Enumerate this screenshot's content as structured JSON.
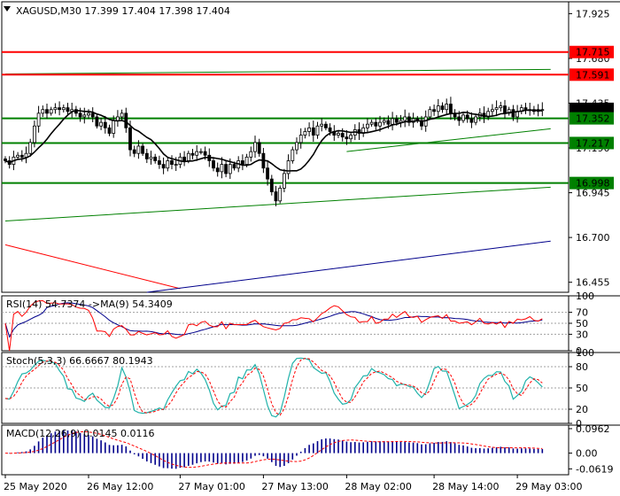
{
  "chart_data": [
    {
      "type": "candlestick",
      "panel": "price",
      "header": "XAGUSD,M30  17.399 17.404 17.398 17.404",
      "y_ticks": [
        "17.925",
        "17.680",
        "17.435",
        "17.190",
        "16.945",
        "16.700",
        "16.455"
      ],
      "ylim": [
        16.4,
        17.99
      ],
      "grid": false,
      "series": [
        {
          "name": "",
          "close": [
            17.12,
            17.1,
            17.14,
            17.15,
            17.14,
            17.16,
            17.22,
            17.31,
            17.38,
            17.4,
            17.38,
            17.4,
            17.41,
            17.4,
            17.41,
            17.39,
            17.4,
            17.38,
            17.36,
            17.37,
            17.38,
            17.36,
            17.31,
            17.33,
            17.3,
            17.27,
            17.34,
            17.36,
            17.38,
            17.3,
            17.18,
            17.16,
            17.2,
            17.16,
            17.13,
            17.14,
            17.12,
            17.1,
            17.08,
            17.12,
            17.1,
            17.1,
            17.14,
            17.12,
            17.16,
            17.15,
            17.17,
            17.17,
            17.15,
            17.12,
            17.08,
            17.06,
            17.1,
            17.05,
            17.1,
            17.08,
            17.12,
            17.1,
            17.14,
            17.17,
            17.22,
            17.16,
            17.08,
            17.02,
            16.95,
            16.9,
            16.97,
            17.05,
            17.12,
            17.18,
            17.22,
            17.26,
            17.28,
            17.3,
            17.26,
            17.31,
            17.32,
            17.3,
            17.28,
            17.26,
            17.27,
            17.25,
            17.24,
            17.26,
            17.29,
            17.27,
            17.3,
            17.32,
            17.33,
            17.31,
            17.33,
            17.34,
            17.32,
            17.35,
            17.33,
            17.34,
            17.36,
            17.33,
            17.35,
            17.34,
            17.31,
            17.36,
            17.4,
            17.39,
            17.42,
            17.4,
            17.43,
            17.38,
            17.36,
            17.34,
            17.37,
            17.35,
            17.33,
            17.36,
            17.38,
            17.36,
            17.39,
            17.4,
            17.41,
            17.42,
            17.38,
            17.4,
            17.36,
            17.39,
            17.41,
            17.4,
            17.4,
            17.39,
            17.4,
            17.4
          ]
        },
        {
          "name": "",
          "type": "line",
          "role": "moving-average"
        }
      ],
      "horizontal_levels": [
        {
          "value": 17.715,
          "color": "#ff0000",
          "label": "17.715"
        },
        {
          "value": 17.591,
          "color": "#ff0000",
          "label": "17.591"
        },
        {
          "value": 17.404,
          "color": "#000000",
          "label": "17.404"
        },
        {
          "value": 17.352,
          "color": "#008000",
          "label": "17.352"
        },
        {
          "value": 17.217,
          "color": "#008000",
          "label": "17.217"
        },
        {
          "value": 16.998,
          "color": "#008000",
          "label": "16.998"
        }
      ],
      "trend_lines": [
        {
          "color": "#008000",
          "from": [
            0,
            16.79
          ],
          "to": [
            131,
            16.975
          ]
        },
        {
          "color": "#008000",
          "from": [
            0,
            17.595
          ],
          "to": [
            131,
            17.62
          ]
        },
        {
          "color": "#008000",
          "from": [
            82,
            17.17
          ],
          "to": [
            131,
            17.295
          ]
        },
        {
          "color": "#ff0000",
          "from": [
            0,
            16.66
          ],
          "to": [
            42,
            16.42
          ]
        },
        {
          "color": "#00008b",
          "from": [
            34,
            16.4
          ],
          "to": [
            131,
            16.68
          ]
        }
      ]
    },
    {
      "type": "line",
      "panel": "indicator",
      "title": "RSI(14) 54.7374  ->MA(9) 54.3409",
      "y_ticks": [
        "100",
        "70",
        "50",
        "30",
        "0"
      ],
      "ylim": [
        0,
        100
      ],
      "dotted_levels": [
        70,
        50,
        30
      ],
      "series": [
        {
          "name": "RSI(14)",
          "color": "#ff0000"
        },
        {
          "name": "MA(9)",
          "color": "#00008b"
        }
      ]
    },
    {
      "type": "line",
      "panel": "indicator",
      "title": "Stoch(5,3,3) 66.6667 80.1943",
      "y_ticks": [
        "100",
        "80",
        "50",
        "20",
        "0"
      ],
      "ylim": [
        0,
        100
      ],
      "dotted_levels": [
        80,
        50,
        20
      ],
      "series": [
        {
          "name": "",
          "color": "#20b2aa"
        },
        {
          "name": "",
          "color": "#ff0000",
          "dash": true
        }
      ]
    },
    {
      "type": "bar",
      "panel": "indicator",
      "title": "MACD(12,26,9) 0.0145 0.0116",
      "y_ticks": [
        "0.0962",
        "0.00",
        "-0.0619"
      ],
      "ylim": [
        -0.085,
        0.11
      ],
      "series": [
        {
          "name": "",
          "color": "#00008b"
        },
        {
          "name": "",
          "type": "line",
          "color": "#ff0000",
          "dash": true
        }
      ]
    }
  ],
  "x_axis": {
    "ticks": [
      {
        "label": "25 May 2020",
        "index": 0
      },
      {
        "label": "26 May 12:00",
        "index": 20
      },
      {
        "label": "27 May 01:00",
        "index": 42
      },
      {
        "label": "27 May 13:00",
        "index": 62
      },
      {
        "label": "28 May 02:00",
        "index": 82
      },
      {
        "label": "28 May 14:00",
        "index": 103
      },
      {
        "label": "29 May 03:00",
        "index": 123
      }
    ]
  }
}
